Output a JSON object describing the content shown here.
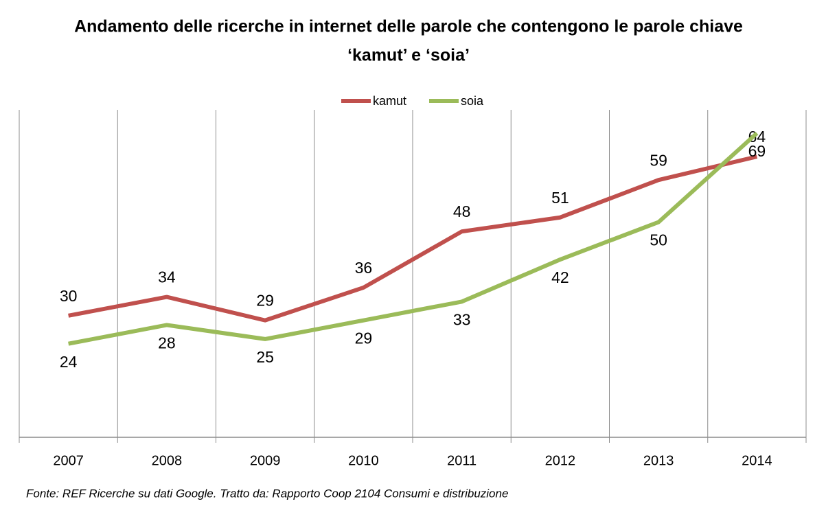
{
  "chart_data": {
    "type": "line",
    "title": [
      "Andamento delle ricerche in internet delle parole che contengono le parole chiave",
      "‘kamut’ e ‘soia’"
    ],
    "categories": [
      "2007",
      "2008",
      "2009",
      "2010",
      "2011",
      "2012",
      "2013",
      "2014"
    ],
    "series": [
      {
        "name": "kamut",
        "color": "#c0504d",
        "values": [
          30,
          34,
          29,
          36,
          48,
          51,
          59,
          64
        ]
      },
      {
        "name": "soia",
        "color": "#9bbb59",
        "values": [
          24,
          28,
          25,
          29,
          33,
          42,
          50,
          69
        ]
      }
    ],
    "ylim": [
      4,
      74
    ],
    "legend": "top",
    "source": "Fonte: REF Ricerche su dati Google. Tratto da: Rapporto Coop 2104 Consumi e distribuzione"
  }
}
